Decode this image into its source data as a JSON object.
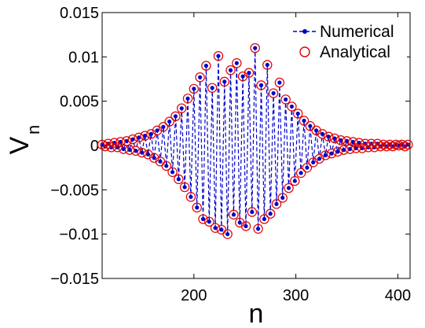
{
  "chart_data": {
    "type": "line",
    "title": "",
    "xlabel": "n",
    "ylabel": "V",
    "ylabel_subscript": "n",
    "xlim": [
      110,
      412
    ],
    "ylim": [
      -0.015,
      0.015
    ],
    "x_ticks": [
      200,
      300,
      400
    ],
    "x_tick_labels": [
      "200",
      "300",
      "400"
    ],
    "y_ticks": [
      -0.015,
      -0.01,
      -0.005,
      0,
      0.005,
      0.01,
      0.015
    ],
    "y_tick_labels": [
      "−0.015",
      "−0.01",
      "−0.005",
      "0",
      "0.005",
      "0.01",
      "0.015"
    ],
    "grid": false,
    "legend_position": "top-right",
    "colors": {
      "numerical": "#0000cc",
      "analytical": "#e00000",
      "axes": "#000000"
    },
    "series": [
      {
        "name": "Numerical",
        "style": "dashed line with dot markers",
        "color": "#0000cc",
        "values": "same as shared y"
      },
      {
        "name": "Analytical",
        "style": "open circle markers",
        "color": "#e00000",
        "values": "same as shared y"
      }
    ],
    "x": [
      110,
      113,
      116,
      119,
      122,
      125,
      128,
      131,
      134,
      137,
      140,
      143,
      146,
      149,
      152,
      155,
      158,
      161,
      164,
      167,
      170,
      173,
      176,
      179,
      182,
      185,
      188,
      191,
      194,
      197,
      200,
      203,
      206,
      209,
      212,
      215,
      218,
      221,
      224,
      227,
      230,
      233,
      236,
      239,
      242,
      245,
      248,
      251,
      254,
      257,
      260,
      263,
      266,
      269,
      272,
      275,
      278,
      281,
      284,
      287,
      290,
      293,
      296,
      299,
      302,
      305,
      308,
      311,
      314,
      317,
      320,
      323,
      326,
      329,
      332,
      335,
      338,
      341,
      344,
      347,
      350,
      353,
      356,
      359,
      362,
      365,
      368,
      371,
      374,
      377,
      380,
      383,
      386,
      389,
      392,
      395,
      398,
      401,
      404,
      407,
      410
    ],
    "y": [
      0.0001,
      -0.0001,
      0.0002,
      -0.0002,
      0.0003,
      -0.0002,
      0.0004,
      -0.0004,
      0.0005,
      -0.0005,
      0.0007,
      -0.0006,
      0.0009,
      -0.0008,
      0.0011,
      -0.001,
      0.0013,
      -0.0014,
      0.0017,
      -0.0018,
      0.0021,
      -0.0023,
      0.0027,
      -0.003,
      0.0033,
      -0.0038,
      0.0042,
      -0.0047,
      0.0053,
      -0.0058,
      0.0064,
      -0.007,
      0.0077,
      -0.0083,
      0.009,
      -0.0086,
      0.0065,
      -0.0093,
      0.0101,
      -0.0095,
      0.0072,
      -0.01,
      0.0085,
      -0.0078,
      0.0093,
      -0.0087,
      0.0078,
      -0.0091,
      0.0082,
      -0.0075,
      0.011,
      -0.0094,
      0.0068,
      -0.0083,
      0.0091,
      -0.0077,
      0.0059,
      -0.0066,
      0.0071,
      -0.0059,
      0.0052,
      -0.0048,
      0.0044,
      -0.004,
      0.0036,
      -0.0031,
      0.0028,
      -0.0025,
      0.0022,
      -0.0019,
      0.0017,
      -0.0015,
      0.0013,
      -0.0011,
      0.001,
      -0.0009,
      0.0008,
      -0.0007,
      0.0006,
      -0.0005,
      0.0005,
      -0.0004,
      0.0004,
      -0.0003,
      0.0003,
      -0.0003,
      0.0002,
      -0.0002,
      0.0002,
      -0.0002,
      0.0002,
      -0.0001,
      0.0001,
      -0.0001,
      0.0001,
      -0.0001,
      0.0001,
      0.0,
      0.0001,
      -0.0001,
      0.0001
    ]
  }
}
